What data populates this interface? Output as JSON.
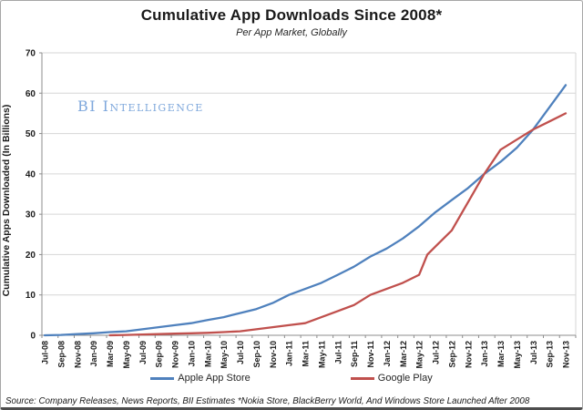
{
  "watermark": {
    "text": "BI Intelligence"
  },
  "source_note": "Source: Company Releases, News Reports, BII Estimates *Nokia Store, BlackBerry World, And Windows Store Launched After 2008",
  "colors": {
    "apple_blue": "#4F81BD",
    "google_red": "#C0504D",
    "watermark_blue": "#7FA8DC",
    "gridline": "#D6D6D6",
    "axis": "#8C8C8C",
    "tick_text": "#1A1A1A"
  },
  "chart_data": {
    "type": "line",
    "title": "Cumulative App Downloads Since 2008*",
    "subtitle": "Per App Market, Globally",
    "xlabel": "",
    "ylabel": "Cumulative Apps Downloaded (In Billions)",
    "ylim": [
      0,
      70
    ],
    "y_ticks": [
      0,
      10,
      20,
      30,
      40,
      50,
      60,
      70
    ],
    "grid": true,
    "legend_position": "bottom",
    "x_axis_note": "x values are months elapsed since Jul-08 (0 = Jul-08, 64 = Nov-13); axis ticks every 2 months",
    "categories": [
      "Jul-08",
      "Sep-08",
      "Nov-08",
      "Jan-09",
      "Mar-09",
      "May-09",
      "Jul-09",
      "Sep-09",
      "Nov-09",
      "Jan-10",
      "Mar-10",
      "May-10",
      "Jul-10",
      "Sep-10",
      "Nov-10",
      "Jan-11",
      "Mar-11",
      "May-11",
      "Jul-11",
      "Sep-11",
      "Nov-11",
      "Jan-12",
      "Mar-12",
      "May-12",
      "Jul-12",
      "Sep-12",
      "Nov-12",
      "Jan-13",
      "Mar-13",
      "May-13",
      "Jul-13",
      "Sep-13",
      "Nov-13"
    ],
    "series": [
      {
        "name": "Apple App Store",
        "color": "#4F81BD",
        "points": [
          [
            0,
            0
          ],
          [
            2,
            0.1
          ],
          [
            4,
            0.3
          ],
          [
            6,
            0.5
          ],
          [
            8,
            0.8
          ],
          [
            10,
            1
          ],
          [
            12,
            1.5
          ],
          [
            14,
            2
          ],
          [
            16,
            2.5
          ],
          [
            18,
            3
          ],
          [
            20,
            3.8
          ],
          [
            22,
            4.5
          ],
          [
            24,
            5.5
          ],
          [
            26,
            6.5
          ],
          [
            28,
            8
          ],
          [
            30,
            10
          ],
          [
            32,
            11.5
          ],
          [
            34,
            13
          ],
          [
            36,
            15
          ],
          [
            38,
            17
          ],
          [
            40,
            19.5
          ],
          [
            42,
            21.5
          ],
          [
            44,
            24
          ],
          [
            46,
            27
          ],
          [
            48,
            30.5
          ],
          [
            50,
            33.5
          ],
          [
            52,
            36.5
          ],
          [
            54,
            40
          ],
          [
            56,
            43
          ],
          [
            58,
            46.5
          ],
          [
            60,
            51
          ],
          [
            62,
            56.5
          ],
          [
            64,
            62
          ]
        ]
      },
      {
        "name": "Google Play",
        "color": "#C0504D",
        "points": [
          [
            8,
            0
          ],
          [
            10,
            0.1
          ],
          [
            12,
            0.2
          ],
          [
            14,
            0.3
          ],
          [
            16,
            0.4
          ],
          [
            18,
            0.5
          ],
          [
            20,
            0.6
          ],
          [
            22,
            0.8
          ],
          [
            24,
            1
          ],
          [
            26,
            1.5
          ],
          [
            28,
            2
          ],
          [
            30,
            2.5
          ],
          [
            32,
            3
          ],
          [
            34,
            4.5
          ],
          [
            36,
            6
          ],
          [
            38,
            7.5
          ],
          [
            40,
            10
          ],
          [
            42,
            11.5
          ],
          [
            44,
            13
          ],
          [
            46,
            15
          ],
          [
            47,
            20
          ],
          [
            48,
            22
          ],
          [
            50,
            26
          ],
          [
            52,
            33
          ],
          [
            54,
            40
          ],
          [
            56,
            46
          ],
          [
            58,
            48.5
          ],
          [
            60,
            51
          ],
          [
            62,
            53
          ],
          [
            64,
            55
          ]
        ]
      }
    ]
  }
}
